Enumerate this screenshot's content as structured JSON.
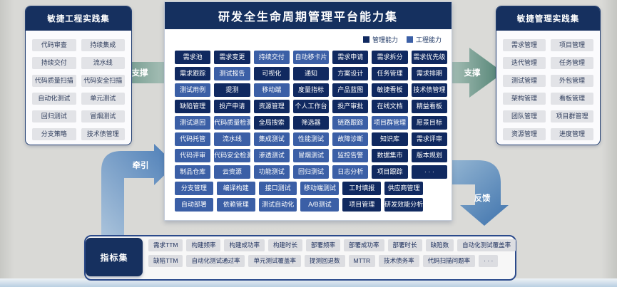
{
  "left_panel": {
    "title": "敏捷工程实践集",
    "items": [
      "代码审查",
      "持续集成",
      "持续交付",
      "流水线",
      "代码质量扫描",
      "代码安全扫描",
      "自动化测试",
      "单元测试",
      "回归测试",
      "冒烟测试",
      "分支策略",
      "技术债管理"
    ]
  },
  "right_panel": {
    "title": "敏捷管理实践集",
    "items": [
      "需求管理",
      "项目管理",
      "迭代管理",
      "任务管理",
      "测试管理",
      "外包管理",
      "架构管理",
      "看板管理",
      "团队管理",
      "项目群管理",
      "资源管理",
      "进度管理"
    ]
  },
  "platform": {
    "title": "研发全生命周期管理平台能力集",
    "legend": [
      {
        "label": "管理能力",
        "kind": "mgmt"
      },
      {
        "label": "工程能力",
        "kind": "eng"
      }
    ],
    "rows": [
      [
        {
          "label": "需求池",
          "kind": "mgmt"
        },
        {
          "label": "需求变更",
          "kind": "mgmt"
        },
        {
          "label": "持续交付",
          "kind": "eng"
        },
        {
          "label": "自动移卡片",
          "kind": "eng"
        },
        {
          "label": "需求申请",
          "kind": "mgmt"
        },
        {
          "label": "需求拆分",
          "kind": "mgmt"
        },
        {
          "label": "需求优先级",
          "kind": "mgmt"
        }
      ],
      [
        {
          "label": "需求跟踪",
          "kind": "mgmt"
        },
        {
          "label": "测试报告",
          "kind": "eng"
        },
        {
          "label": "可视化",
          "kind": "mgmt"
        },
        {
          "label": "通知",
          "kind": "mgmt"
        },
        {
          "label": "方案设计",
          "kind": "mgmt"
        },
        {
          "label": "任务管理",
          "kind": "mgmt"
        },
        {
          "label": "需求排期",
          "kind": "mgmt"
        }
      ],
      [
        {
          "label": "测试用例",
          "kind": "eng"
        },
        {
          "label": "提测",
          "kind": "mgmt"
        },
        {
          "label": "移动端",
          "kind": "eng"
        },
        {
          "label": "度量指标",
          "kind": "mgmt"
        },
        {
          "label": "产品蓝图",
          "kind": "mgmt"
        },
        {
          "label": "敏捷看板",
          "kind": "mgmt"
        },
        {
          "label": "技术债管理",
          "kind": "mgmt"
        }
      ],
      [
        {
          "label": "缺陷管理",
          "kind": "mgmt"
        },
        {
          "label": "投产申请",
          "kind": "mgmt"
        },
        {
          "label": "资源管理",
          "kind": "mgmt"
        },
        {
          "label": "个人工作台",
          "kind": "mgmt"
        },
        {
          "label": "投产审批",
          "kind": "mgmt"
        },
        {
          "label": "在线文档",
          "kind": "mgmt"
        },
        {
          "label": "精益看板",
          "kind": "mgmt"
        }
      ],
      [
        {
          "label": "测试退回",
          "kind": "eng"
        },
        {
          "label": "代码质量检测",
          "kind": "eng"
        },
        {
          "label": "全局搜索",
          "kind": "mgmt"
        },
        {
          "label": "筛选器",
          "kind": "mgmt"
        },
        {
          "label": "链路跟踪",
          "kind": "eng"
        },
        {
          "label": "项目群管理",
          "kind": "eng"
        },
        {
          "label": "愿景目标",
          "kind": "mgmt"
        }
      ],
      [
        {
          "label": "代码托管",
          "kind": "eng"
        },
        {
          "label": "流水线",
          "kind": "eng"
        },
        {
          "label": "集成测试",
          "kind": "eng"
        },
        {
          "label": "性能测试",
          "kind": "eng"
        },
        {
          "label": "故障诊断",
          "kind": "eng"
        },
        {
          "label": "知识库",
          "kind": "mgmt"
        },
        {
          "label": "需求评审",
          "kind": "mgmt"
        }
      ],
      [
        {
          "label": "代码评审",
          "kind": "eng"
        },
        {
          "label": "代码安全检测",
          "kind": "eng"
        },
        {
          "label": "渗透测试",
          "kind": "eng"
        },
        {
          "label": "冒烟测试",
          "kind": "eng"
        },
        {
          "label": "监控告警",
          "kind": "eng"
        },
        {
          "label": "数据集市",
          "kind": "mgmt"
        },
        {
          "label": "版本规划",
          "kind": "mgmt"
        }
      ],
      [
        {
          "label": "制品仓库",
          "kind": "eng"
        },
        {
          "label": "云资源",
          "kind": "eng"
        },
        {
          "label": "功能测试",
          "kind": "eng"
        },
        {
          "label": "回归测试",
          "kind": "eng"
        },
        {
          "label": "日志分析",
          "kind": "eng"
        },
        {
          "label": "项目跟踪",
          "kind": "mgmt"
        },
        {
          "label": "· · ·",
          "kind": "mgmt"
        }
      ],
      [
        {
          "label": "分支管理",
          "kind": "eng"
        },
        {
          "label": "编译构建",
          "kind": "eng"
        },
        {
          "label": "接口测试",
          "kind": "eng"
        },
        {
          "label": "移动端测试",
          "kind": "eng"
        },
        {
          "label": "工时填报",
          "kind": "mgmt"
        },
        {
          "label": "供应商管理",
          "kind": "mgmt"
        }
      ],
      [
        {
          "label": "自动部署",
          "kind": "eng"
        },
        {
          "label": "依赖管理",
          "kind": "eng"
        },
        {
          "label": "测试自动化",
          "kind": "eng"
        },
        {
          "label": "A/B测试",
          "kind": "eng"
        },
        {
          "label": "项目管理",
          "kind": "mgmt"
        },
        {
          "label": "研发效能分析",
          "kind": "mgmt"
        }
      ]
    ]
  },
  "arrows": {
    "support_left": "支撑",
    "support_right": "支撑",
    "pull": "牵引",
    "feedback": "反馈"
  },
  "metrics": {
    "title": "指标集",
    "rows": [
      [
        "需求TTM",
        "构建频率",
        "构建成功率",
        "构建时长",
        "部署频率",
        "部署成功率",
        "部署时长",
        "缺陷数",
        "自动化测试覆盖率"
      ],
      [
        "缺陷TTM",
        "自动化测试通过率",
        "单元测试覆盖率",
        "提测回退数",
        "MTTR",
        "技术债务率",
        "代码扫描问题率",
        "· · ·"
      ]
    ]
  },
  "colors": {
    "mgmt": "#102960",
    "eng": "#3b5fa6",
    "header_navy": "#15305f",
    "teal_arrow": "#4f8172",
    "blue_arrow": "#4a7cb6",
    "background": "#d8d8d5"
  }
}
